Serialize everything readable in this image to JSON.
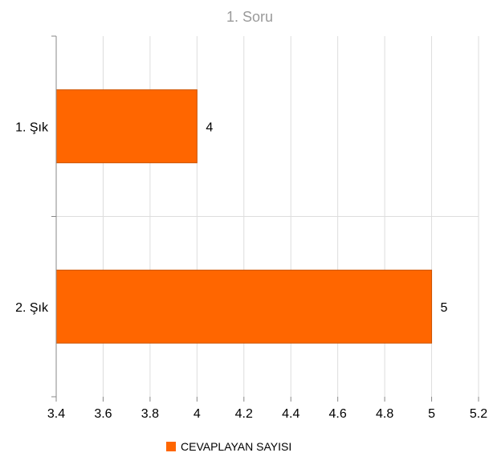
{
  "chart_data": {
    "type": "bar",
    "orientation": "horizontal",
    "title": "1. Soru",
    "categories": [
      "1. Şık",
      "2. Şık"
    ],
    "series": [
      {
        "name": "CEVAPLAYAN SAYISI",
        "values": [
          4,
          5
        ],
        "color": "#ff6600"
      }
    ],
    "data_labels": [
      "4",
      "5"
    ],
    "xlim": [
      3.4,
      5.2
    ],
    "xticks": [
      3.4,
      3.6,
      3.8,
      4,
      4.2,
      4.4,
      4.6,
      4.8,
      5,
      5.2
    ],
    "xtick_labels": [
      "3.4",
      "3.6",
      "3.8",
      "4",
      "4.2",
      "4.4",
      "4.6",
      "4.8",
      "5",
      "5.2"
    ],
    "grid": "vertical",
    "legend_position": "bottom"
  },
  "colors": {
    "bar": "#ff6600",
    "bar_border": "#cc5200",
    "grid": "#dddddd",
    "axis": "#888888",
    "title": "#9a9a9a"
  }
}
